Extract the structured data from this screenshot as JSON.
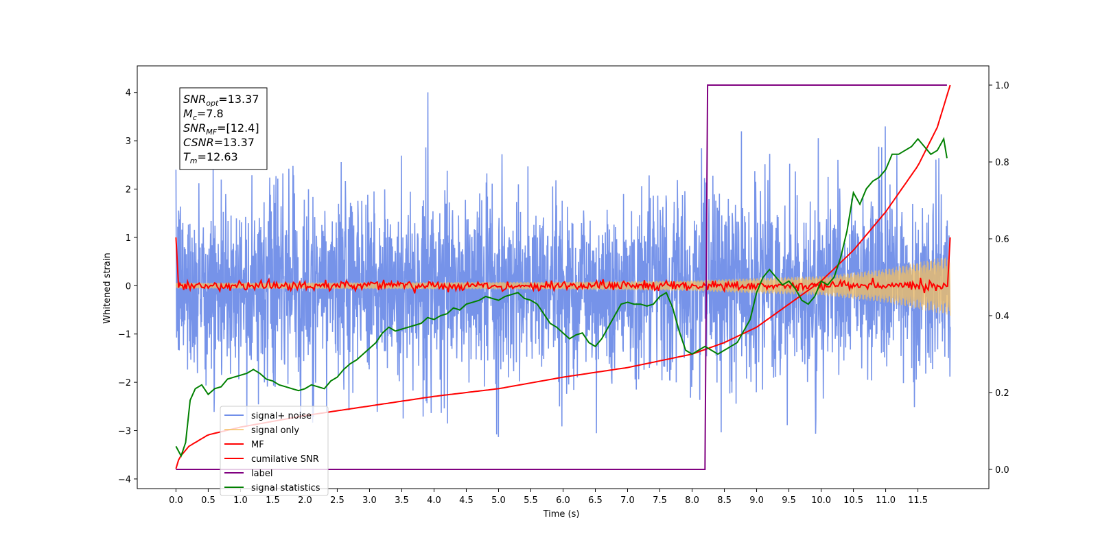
{
  "chart_data": {
    "type": "line",
    "xlabel": "Time (s)",
    "ylabel": "Whitened strain",
    "y2label": "",
    "xlim": [
      -0.6,
      12.6
    ],
    "ylim": [
      -4.2,
      4.55
    ],
    "y2lim": [
      -0.05,
      1.05
    ],
    "x_ticks": [
      "0.0",
      "0.5",
      "1.0",
      "1.5",
      "2.0",
      "2.5",
      "3.0",
      "3.5",
      "4.0",
      "4.5",
      "5.0",
      "5.5",
      "6.0",
      "6.5",
      "7.0",
      "7.5",
      "8.0",
      "8.5",
      "9.0",
      "9.5",
      "10.0",
      "10.5",
      "11.0",
      "11.5"
    ],
    "y_ticks": [
      "4",
      "3",
      "2",
      "1",
      "0",
      "−1",
      "−2",
      "−3",
      "−4"
    ],
    "y2_ticks": [
      "1.0",
      "0.8",
      "0.6",
      "0.4",
      "0.2",
      "0.0"
    ],
    "grid": false,
    "legend_position": "lower-left",
    "info_box": {
      "position": "upper-left",
      "lines": [
        {
          "main": "SNR",
          "sub": "opt",
          "rest": "=13.37"
        },
        {
          "main": "M",
          "sub": "c",
          "rest": "=7.8"
        },
        {
          "main": "SNR",
          "sub": "MF",
          "rest": "=[12.4]"
        },
        {
          "main": "CSNR",
          "sub": "",
          "rest": "=13.37"
        },
        {
          "main": "T",
          "sub": "m",
          "rest": "=12.63"
        }
      ]
    },
    "series": [
      {
        "name": "signal+ noise",
        "axis": "left",
        "color": "#4169e1",
        "style": "dense noise, std ~1.0, range -3.8 to 4.2, x 0 to 12.0",
        "x_range": [
          0,
          12.0
        ],
        "envelope": [
          {
            "x": 0.0,
            "lo": -2.4,
            "hi": 2.4
          },
          {
            "x": 0.5,
            "lo": -2.6,
            "hi": 2.5
          },
          {
            "x": 1.0,
            "lo": -2.9,
            "hi": 2.4
          },
          {
            "x": 2.0,
            "lo": -2.8,
            "hi": 2.6
          },
          {
            "x": 3.0,
            "lo": -3.1,
            "hi": 2.9
          },
          {
            "x": 3.85,
            "lo": -2.7,
            "hi": 4.15
          },
          {
            "x": 4.75,
            "lo": -3.75,
            "hi": 2.6
          },
          {
            "x": 6.0,
            "lo": -2.9,
            "hi": 3.1
          },
          {
            "x": 7.0,
            "lo": -3.3,
            "hi": 3.2
          },
          {
            "x": 8.0,
            "lo": -3.0,
            "hi": 3.3
          },
          {
            "x": 9.0,
            "lo": -3.2,
            "hi": 3.2
          },
          {
            "x": 9.5,
            "lo": -3.5,
            "hi": 3.1
          },
          {
            "x": 10.5,
            "lo": -3.3,
            "hi": 3.0
          },
          {
            "x": 11.0,
            "lo": -3.2,
            "hi": 3.3
          },
          {
            "x": 12.0,
            "lo": -2.1,
            "hi": 2.5
          }
        ]
      },
      {
        "name": "signal only",
        "axis": "left",
        "color": "#f5c060",
        "style": "chirp with growing amplitude",
        "amplitude": [
          {
            "x": 0.0,
            "amp": 0.06
          },
          {
            "x": 6.0,
            "amp": 0.08
          },
          {
            "x": 8.0,
            "amp": 0.11
          },
          {
            "x": 9.0,
            "amp": 0.16
          },
          {
            "x": 10.0,
            "amp": 0.2
          },
          {
            "x": 11.0,
            "amp": 0.35
          },
          {
            "x": 12.0,
            "amp": 0.62
          }
        ]
      },
      {
        "name": "MF",
        "axis": "left",
        "color": "#ff0000",
        "style": "noisy around 0 (std ~0.05), spikes to 1.0 at both ends"
      },
      {
        "name": "cumilative SNR",
        "axis": "right",
        "color": "#ff0000",
        "x": [
          0.0,
          0.05,
          0.2,
          0.5,
          1.0,
          2.0,
          3.0,
          4.0,
          5.0,
          6.0,
          7.0,
          8.0,
          8.5,
          9.0,
          9.5,
          10.0,
          10.5,
          11.0,
          11.5,
          11.8,
          12.0
        ],
        "y": [
          0.002,
          0.03,
          0.06,
          0.09,
          0.11,
          0.14,
          0.165,
          0.19,
          0.21,
          0.24,
          0.265,
          0.3,
          0.33,
          0.37,
          0.43,
          0.49,
          0.57,
          0.67,
          0.79,
          0.89,
          1.0
        ]
      },
      {
        "name": "label",
        "axis": "right",
        "color": "#800080",
        "x": [
          0.0,
          8.2,
          8.24,
          11.95
        ],
        "y": [
          0.0,
          0.0,
          1.0,
          1.0
        ]
      },
      {
        "name": "signal statistics",
        "axis": "right",
        "color": "#008000",
        "x": [
          0.0,
          0.08,
          0.15,
          0.22,
          0.3,
          0.4,
          0.5,
          0.6,
          0.7,
          0.8,
          0.9,
          1.0,
          1.1,
          1.2,
          1.3,
          1.4,
          1.5,
          1.6,
          1.7,
          1.8,
          1.9,
          2.0,
          2.1,
          2.2,
          2.3,
          2.4,
          2.5,
          2.6,
          2.7,
          2.8,
          2.9,
          3.0,
          3.1,
          3.2,
          3.3,
          3.4,
          3.5,
          3.6,
          3.7,
          3.8,
          3.9,
          4.0,
          4.1,
          4.2,
          4.3,
          4.4,
          4.5,
          4.6,
          4.7,
          4.8,
          4.9,
          5.0,
          5.1,
          5.2,
          5.3,
          5.4,
          5.5,
          5.6,
          5.7,
          5.8,
          5.9,
          6.0,
          6.1,
          6.2,
          6.3,
          6.4,
          6.5,
          6.6,
          6.7,
          6.8,
          6.9,
          7.0,
          7.1,
          7.2,
          7.3,
          7.4,
          7.5,
          7.6,
          7.7,
          7.8,
          7.9,
          8.0,
          8.1,
          8.2,
          8.3,
          8.4,
          8.5,
          8.6,
          8.7,
          8.8,
          8.9,
          9.0,
          9.1,
          9.2,
          9.3,
          9.4,
          9.5,
          9.6,
          9.7,
          9.8,
          9.9,
          10.0,
          10.1,
          10.2,
          10.3,
          10.4,
          10.5,
          10.6,
          10.7,
          10.8,
          10.9,
          11.0,
          11.1,
          11.2,
          11.3,
          11.4,
          11.5,
          11.6,
          11.7,
          11.8,
          11.9,
          11.95
        ],
        "y": [
          0.06,
          0.035,
          0.07,
          0.18,
          0.21,
          0.22,
          0.195,
          0.21,
          0.215,
          0.235,
          0.24,
          0.245,
          0.25,
          0.26,
          0.25,
          0.235,
          0.23,
          0.22,
          0.215,
          0.21,
          0.205,
          0.21,
          0.22,
          0.215,
          0.21,
          0.23,
          0.24,
          0.26,
          0.275,
          0.285,
          0.3,
          0.315,
          0.33,
          0.355,
          0.37,
          0.36,
          0.365,
          0.37,
          0.375,
          0.38,
          0.395,
          0.39,
          0.4,
          0.405,
          0.42,
          0.415,
          0.43,
          0.435,
          0.44,
          0.45,
          0.445,
          0.44,
          0.45,
          0.455,
          0.46,
          0.445,
          0.44,
          0.43,
          0.405,
          0.38,
          0.37,
          0.355,
          0.34,
          0.35,
          0.355,
          0.33,
          0.32,
          0.34,
          0.37,
          0.4,
          0.43,
          0.435,
          0.43,
          0.43,
          0.425,
          0.43,
          0.45,
          0.46,
          0.42,
          0.36,
          0.31,
          0.3,
          0.31,
          0.32,
          0.31,
          0.3,
          0.31,
          0.32,
          0.33,
          0.36,
          0.39,
          0.46,
          0.5,
          0.52,
          0.5,
          0.48,
          0.49,
          0.47,
          0.44,
          0.43,
          0.45,
          0.49,
          0.48,
          0.5,
          0.55,
          0.62,
          0.72,
          0.69,
          0.73,
          0.75,
          0.76,
          0.78,
          0.82,
          0.82,
          0.83,
          0.84,
          0.86,
          0.84,
          0.82,
          0.83,
          0.86,
          0.81
        ]
      }
    ]
  }
}
